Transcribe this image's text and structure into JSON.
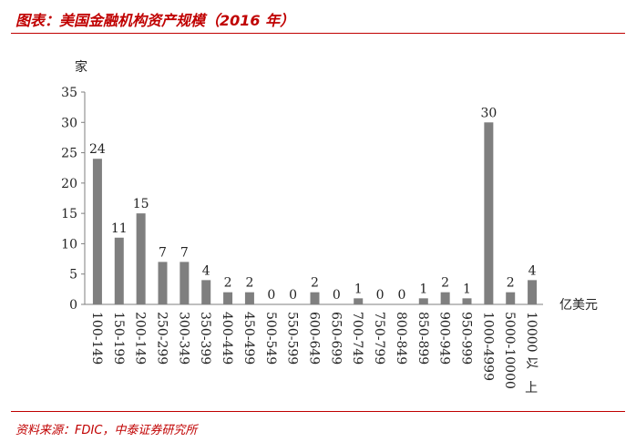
{
  "header": {
    "title": "图表：美国金融机构资产规模（2016 年）"
  },
  "footer": {
    "source": "资料来源：FDIC，中泰证券研究所"
  },
  "colors": {
    "accent": "#c00000",
    "bar": "#7f7f7f"
  },
  "chart_data": {
    "type": "bar",
    "title": "",
    "ylabel": "家",
    "xlabel": "亿美元",
    "ylim": [
      0,
      35
    ],
    "yticks": [
      0,
      5,
      10,
      15,
      20,
      25,
      30,
      35
    ],
    "grid": false,
    "categories": [
      "100-149",
      "150-199",
      "200-149",
      "250-299",
      "300-349",
      "350-399",
      "400-449",
      "450-499",
      "500-549",
      "550-599",
      "600-649",
      "650-699",
      "700-749",
      "750-799",
      "800-849",
      "850-899",
      "900-949",
      "950-999",
      "1000-4999",
      "5000-10000",
      "10000 以上"
    ],
    "values": [
      24,
      11,
      15,
      7,
      7,
      4,
      2,
      2,
      0,
      0,
      2,
      0,
      1,
      0,
      0,
      1,
      2,
      1,
      30,
      2,
      4
    ]
  }
}
